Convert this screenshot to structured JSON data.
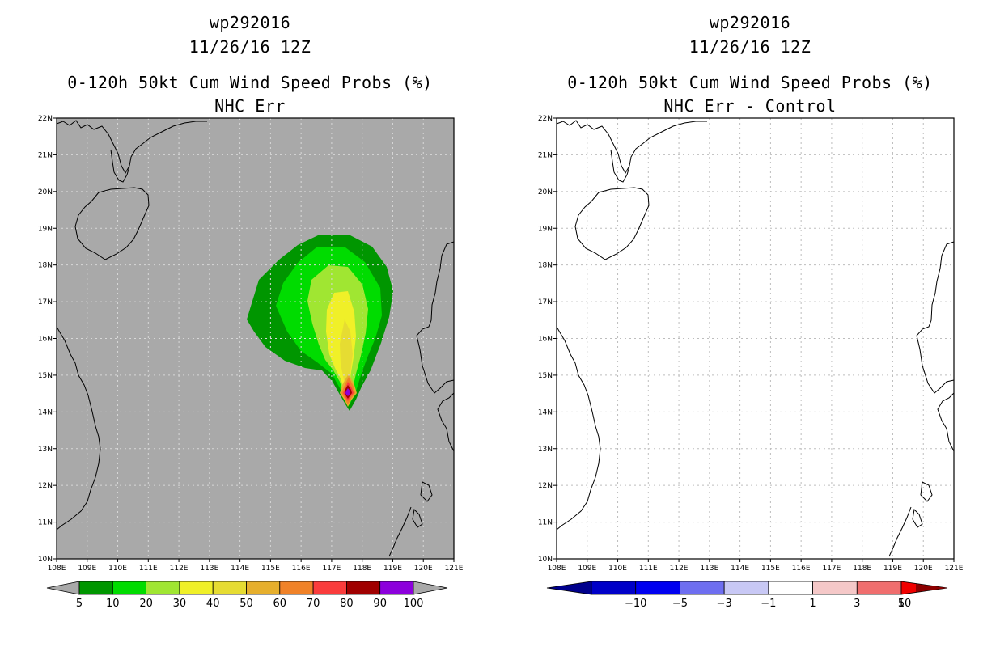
{
  "panels": [
    {
      "storm_id": "wp292016",
      "datetime": "11/26/16 12Z",
      "product": "0-120h 50kt Cum Wind Speed Probs (%)",
      "subtitle": "NHC Err",
      "background_color": "#a9a9a9",
      "colorbar": {
        "labels": [
          "5",
          "10",
          "20",
          "30",
          "40",
          "50",
          "60",
          "70",
          "80",
          "90",
          "100"
        ],
        "colors": [
          "#009600",
          "#00dc00",
          "#a0e632",
          "#f0f028",
          "#e6dc32",
          "#e6af2d",
          "#f08228",
          "#fa3c3c",
          "#a00000",
          "#8c00dc"
        ],
        "end_color": "#a9a9a9"
      }
    },
    {
      "storm_id": "wp292016",
      "datetime": "11/26/16 12Z",
      "product": "0-120h 50kt Cum Wind Speed Probs (%)",
      "subtitle": "NHC Err - Control",
      "background_color": "#ffffff",
      "colorbar": {
        "labels": [
          "−10",
          "−5",
          "−3",
          "−1",
          "1",
          "3",
          "5",
          "10"
        ],
        "colors": [
          "#0000c8",
          "#0000f0",
          "#6e6ef0",
          "#c8c8f5",
          "#ffffff",
          "#f5c8c8",
          "#f06e6e",
          "#f00000"
        ],
        "low_end_color": "#00008c",
        "high_end_color": "#8c0000"
      }
    }
  ],
  "map": {
    "lat_labels": [
      "22N",
      "21N",
      "20N",
      "19N",
      "18N",
      "17N",
      "16N",
      "15N",
      "14N",
      "13N",
      "12N",
      "11N",
      "10N"
    ],
    "lon_labels": [
      "108E",
      "109E",
      "110E",
      "111E",
      "112E",
      "113E",
      "114E",
      "115E",
      "116E",
      "117E",
      "118E",
      "119E",
      "120E",
      "121E"
    ]
  }
}
